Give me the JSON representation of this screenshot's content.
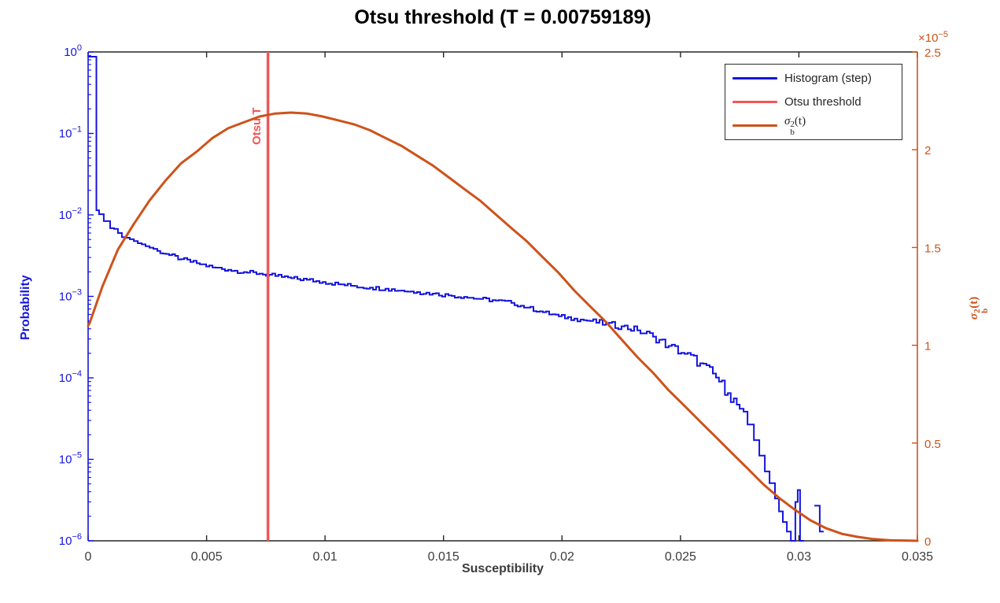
{
  "title": "Otsu threshold (T = 0.00759189)",
  "xlabel": "Susceptibility",
  "ylabel_left": "Probability",
  "ylabel_right": {
    "sigma": "σ",
    "sup": "2",
    "sub": "b",
    "arg": "(t)"
  },
  "otsu_line_label": "Otsu T",
  "colors": {
    "histogram": "#1414DF",
    "threshold": "#F25656",
    "sigma": "#CE521A",
    "axis_dark": "#262626",
    "tick_text_dark": "#3c3c3c",
    "background": "#FFFFFF"
  },
  "legend": {
    "items": [
      {
        "label": "Histogram (step)",
        "color": "#1414DF"
      },
      {
        "label": "Otsu threshold",
        "color": "#F25656"
      },
      {
        "label_sigma": {
          "sigma": "σ",
          "sup": "2",
          "sub": "b",
          "arg": "(t)"
        },
        "color": "#CE521A"
      }
    ]
  },
  "chart_data": {
    "type": "line",
    "title": "Otsu threshold (T = 0.00759189)",
    "xlabel": "Susceptibility",
    "ylabel_left": "Probability",
    "ylabel_right": "sigma_b^2(t)",
    "grid": false,
    "legend_position": "top-right",
    "otsu_threshold": 0.00759189,
    "x_range": [
      0,
      0.035
    ],
    "x_ticks": [
      0,
      0.005,
      0.01,
      0.015,
      0.02,
      0.025,
      0.03,
      0.035
    ],
    "x_tick_labels": [
      "0",
      "0.005",
      "0.01",
      "0.015",
      "0.02",
      "0.025",
      "0.03",
      "0.035"
    ],
    "y_left": {
      "scale": "log",
      "range": [
        1e-06,
        1
      ],
      "tick_exponents": [
        0,
        -1,
        -2,
        -3,
        -4,
        -5,
        -6
      ]
    },
    "y_right": {
      "scale": "linear",
      "unit": 1e-05,
      "range": [
        0,
        2.5
      ],
      "ticks": [
        0,
        0.5,
        1,
        1.5,
        2,
        2.5
      ],
      "tick_labels": [
        "0",
        "0.5",
        "1",
        "1.5",
        "2",
        "2.5"
      ],
      "multiplier_base": "×10",
      "multiplier_exp": "-5"
    },
    "step_render": {
      "bin_width": 0.00014,
      "noise_decades_base": 0.025,
      "noise_tail_start": 0.02,
      "noise_tail_slope": 7,
      "noise_max": 0.1
    },
    "series": [
      {
        "name": "Histogram (step)",
        "type": "step",
        "axis": "left",
        "points": [
          [
            0.0,
            0.875
          ],
          [
            0.00035,
            0.0114
          ],
          [
            0.00046,
            0.0102
          ],
          [
            0.00066,
            0.00838
          ],
          [
            0.00093,
            0.00687
          ],
          [
            0.00126,
            0.006
          ],
          [
            0.00159,
            0.00524
          ],
          [
            0.00193,
            0.00477
          ],
          [
            0.00226,
            0.00435
          ],
          [
            0.00259,
            0.00396
          ],
          [
            0.00292,
            0.00361
          ],
          [
            0.00342,
            0.00321
          ],
          [
            0.00392,
            0.00286
          ],
          [
            0.00458,
            0.00255
          ],
          [
            0.00525,
            0.00227
          ],
          [
            0.00591,
            0.00212
          ],
          [
            0.00657,
            0.00199
          ],
          [
            0.00724,
            0.0019
          ],
          [
            0.0079,
            0.00178
          ],
          [
            0.00857,
            0.00167
          ],
          [
            0.00923,
            0.0016
          ],
          [
            0.0099,
            0.0015
          ],
          [
            0.01056,
            0.00141
          ],
          [
            0.01122,
            0.00134
          ],
          [
            0.01189,
            0.00128
          ],
          [
            0.01255,
            0.00124
          ],
          [
            0.01322,
            0.00118
          ],
          [
            0.01388,
            0.00113
          ],
          [
            0.01454,
            0.00108
          ],
          [
            0.01521,
            0.00103
          ],
          [
            0.01587,
            0.000987
          ],
          [
            0.01654,
            0.000929
          ],
          [
            0.0172,
            0.000888
          ],
          [
            0.01786,
            0.000832
          ],
          [
            0.01853,
            0.000729
          ],
          [
            0.01919,
            0.000639
          ],
          [
            0.01986,
            0.000571
          ],
          [
            0.02052,
            0.000534
          ],
          [
            0.02118,
            0.000499
          ],
          [
            0.02185,
            0.000458
          ],
          [
            0.02251,
            0.000429
          ],
          [
            0.02318,
            0.000383
          ],
          [
            0.02384,
            0.000321
          ],
          [
            0.0245,
            0.000246
          ],
          [
            0.02517,
            0.000197
          ],
          [
            0.02583,
            0.000151
          ],
          [
            0.0265,
            0.000101
          ],
          [
            0.027,
            6.49e-05
          ],
          [
            0.0275,
            4.17e-05
          ],
          [
            0.02783,
            2.68e-05
          ],
          [
            0.0281,
            1.72e-05
          ],
          [
            0.02833,
            1.11e-05
          ],
          [
            0.02856,
            7.1e-06
          ],
          [
            0.02876,
            5.1e-06
          ],
          [
            0.02899,
            3.3e-06
          ],
          [
            0.02916,
            2.3e-06
          ],
          [
            0.02932,
            1.7e-06
          ],
          [
            0.02949,
            1.3e-06
          ],
          [
            0.02966,
            1e-06
          ],
          [
            0.02985,
            3e-06
          ],
          [
            0.02995,
            4.2e-06
          ],
          [
            0.03005,
            1e-06
          ],
          [
            0.03022,
            1e-06
          ],
          [
            0.03028,
            null
          ],
          [
            0.03065,
            2.7e-06
          ],
          [
            0.03088,
            1.3e-06
          ]
        ]
      },
      {
        "name": "Otsu threshold",
        "type": "vline",
        "axis": "left",
        "x": 0.00759189
      },
      {
        "name": "sigma_b^2(t)",
        "type": "line",
        "axis": "right",
        "points": [
          [
            0.0,
            1.1
          ],
          [
            7e-05,
            1.115
          ],
          [
            0.0006,
            1.3
          ],
          [
            0.00126,
            1.49
          ],
          [
            0.00193,
            1.62
          ],
          [
            0.00259,
            1.74
          ],
          [
            0.00325,
            1.84
          ],
          [
            0.00392,
            1.93
          ],
          [
            0.00458,
            1.99
          ],
          [
            0.00525,
            2.06
          ],
          [
            0.00591,
            2.11
          ],
          [
            0.00657,
            2.14
          ],
          [
            0.00724,
            2.17
          ],
          [
            0.0079,
            2.185
          ],
          [
            0.00857,
            2.19
          ],
          [
            0.00923,
            2.185
          ],
          [
            0.0099,
            2.17
          ],
          [
            0.01056,
            2.15
          ],
          [
            0.01122,
            2.13
          ],
          [
            0.01189,
            2.1
          ],
          [
            0.01255,
            2.06
          ],
          [
            0.01322,
            2.02
          ],
          [
            0.01388,
            1.97
          ],
          [
            0.01454,
            1.92
          ],
          [
            0.01521,
            1.86
          ],
          [
            0.01587,
            1.8
          ],
          [
            0.01654,
            1.74
          ],
          [
            0.0172,
            1.67
          ],
          [
            0.01786,
            1.6
          ],
          [
            0.01853,
            1.53
          ],
          [
            0.01919,
            1.45
          ],
          [
            0.01986,
            1.37
          ],
          [
            0.02052,
            1.28
          ],
          [
            0.02118,
            1.2
          ],
          [
            0.02185,
            1.12
          ],
          [
            0.02251,
            1.03
          ],
          [
            0.02318,
            0.94
          ],
          [
            0.02384,
            0.86
          ],
          [
            0.0245,
            0.77
          ],
          [
            0.02517,
            0.69
          ],
          [
            0.02583,
            0.61
          ],
          [
            0.0265,
            0.53
          ],
          [
            0.02716,
            0.45
          ],
          [
            0.02783,
            0.37
          ],
          [
            0.02849,
            0.29
          ],
          [
            0.02916,
            0.22
          ],
          [
            0.02982,
            0.16
          ],
          [
            0.03048,
            0.105
          ],
          [
            0.03115,
            0.064
          ],
          [
            0.03181,
            0.036
          ],
          [
            0.03248,
            0.02
          ],
          [
            0.03314,
            0.009
          ],
          [
            0.03381,
            0.003
          ],
          [
            0.035,
            0.0
          ]
        ]
      }
    ]
  }
}
